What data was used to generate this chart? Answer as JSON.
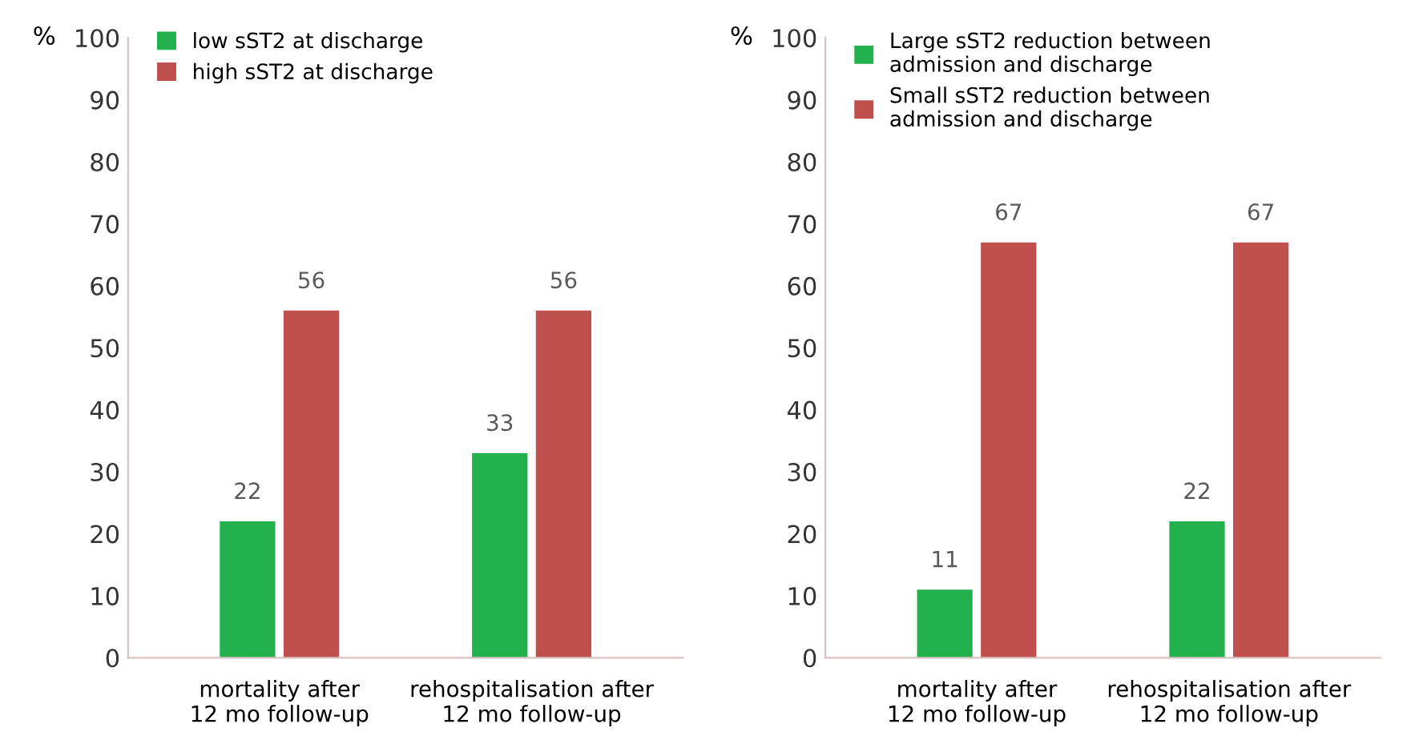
{
  "chart_data": [
    {
      "type": "bar",
      "ylabel": "%",
      "categories": [
        "mortality after\n12 mo follow-up",
        "rehospitalisation after\n12 mo follow-up"
      ],
      "series": [
        {
          "name": "low sST2 at discharge",
          "color": "#22b14c",
          "values": [
            22,
            33
          ]
        },
        {
          "name": "high sST2 at discharge",
          "color": "#c0504d",
          "values": [
            56,
            56
          ]
        }
      ],
      "ylim": [
        0,
        100
      ],
      "yticks": [
        0,
        10,
        20,
        30,
        40,
        50,
        60,
        70,
        80,
        90,
        100
      ],
      "grid": false,
      "legend": "top left",
      "data_labels": true
    },
    {
      "type": "bar",
      "ylabel": "%",
      "categories": [
        "mortality after\n12 mo follow-up",
        "rehospitalisation after\n12 mo follow-up"
      ],
      "series": [
        {
          "name": "Large sST2 reduction between\nadmission and discharge",
          "color": "#22b14c",
          "values": [
            11,
            22
          ]
        },
        {
          "name": "Small sST2 reduction between\nadmission and discharge",
          "color": "#c0504d",
          "values": [
            67,
            67
          ]
        }
      ],
      "ylim": [
        0,
        100
      ],
      "yticks": [
        0,
        10,
        20,
        30,
        40,
        50,
        60,
        70,
        80,
        90,
        100
      ],
      "grid": false,
      "legend": "top left",
      "data_labels": true
    }
  ]
}
